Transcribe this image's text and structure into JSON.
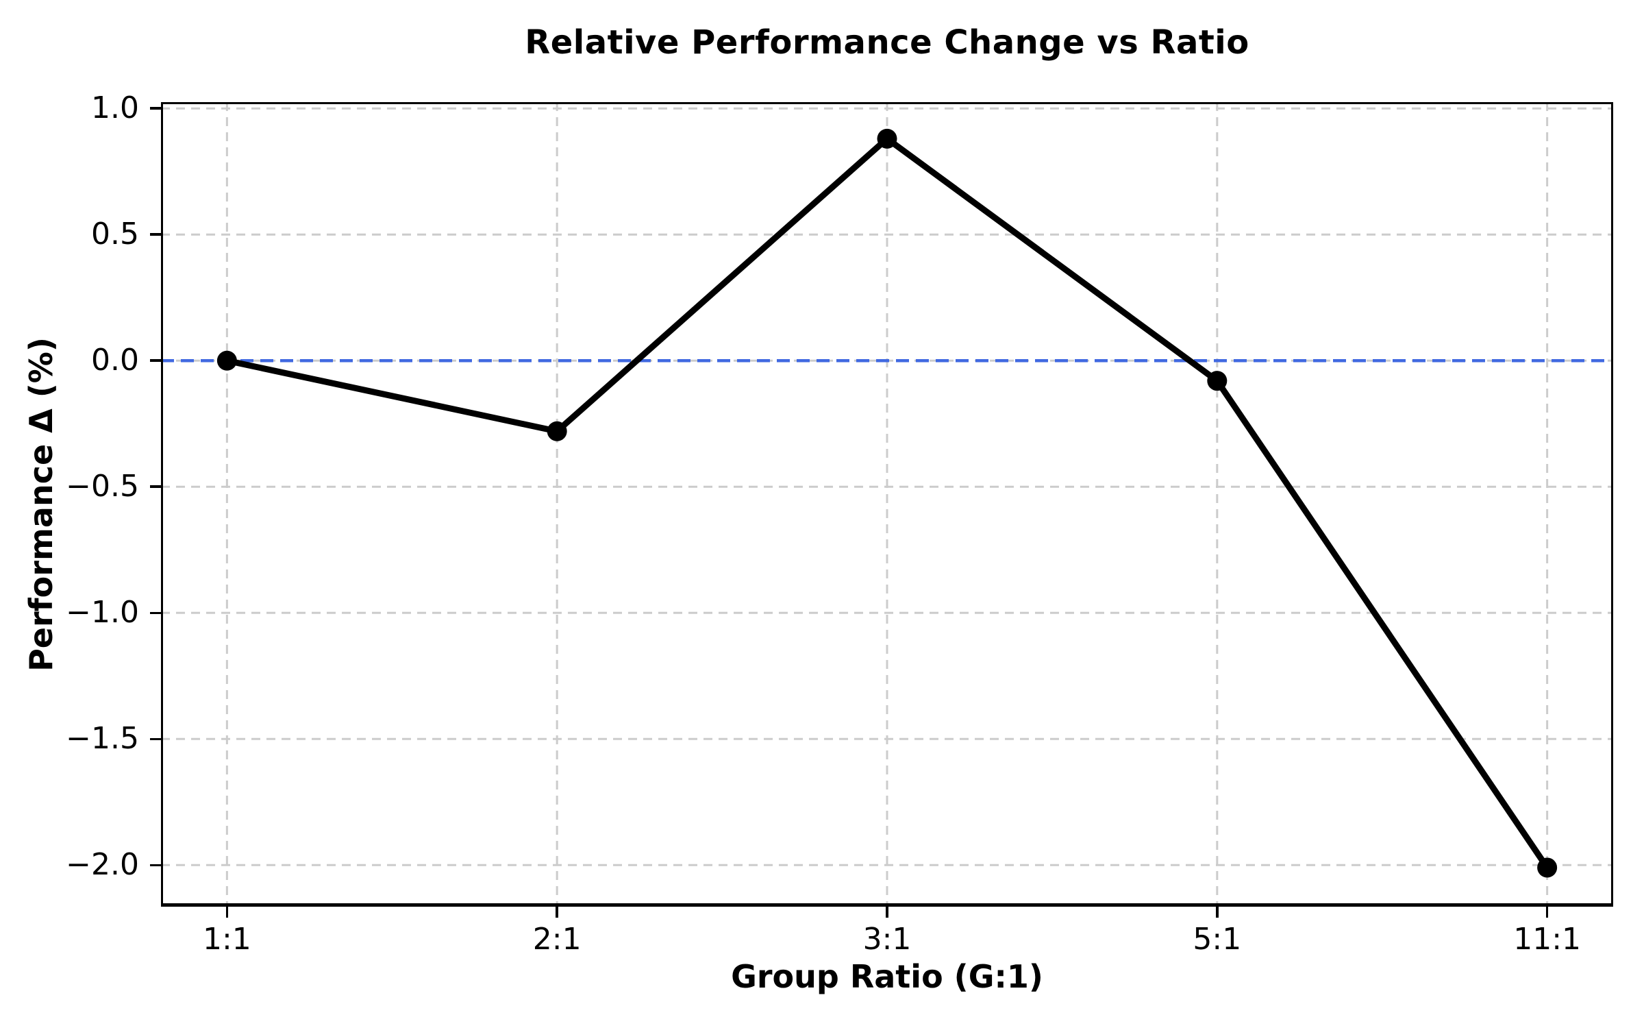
{
  "chart_data": {
    "type": "line",
    "title": "Relative Performance Change vs Ratio",
    "xlabel": "Group Ratio (G:1)",
    "ylabel": "Performance Δ (%)",
    "categories": [
      "1:1",
      "2:1",
      "3:1",
      "5:1",
      "11:1"
    ],
    "series": [
      {
        "name": "Performance Δ",
        "values": [
          0.0,
          -0.28,
          0.88,
          -0.08,
          -2.01
        ]
      }
    ],
    "yticks": [
      1.0,
      0.5,
      0.0,
      -0.5,
      -1.0,
      -1.5,
      -2.0
    ],
    "ytick_labels": [
      "1.0",
      "0.5",
      "0.0",
      "−0.5",
      "−1.0",
      "−1.5",
      "−2.0"
    ],
    "ylim": [
      -2.165,
      1.025
    ],
    "x_margin": 0.2,
    "grid": true,
    "legend": "none",
    "zero_line": 0.0,
    "colors": {
      "line": "#000000",
      "marker": "#000000",
      "zero_line": "#4169e1",
      "grid": "#cccccc",
      "spine": "#000000",
      "text": "#000000",
      "background": "#ffffff"
    }
  }
}
